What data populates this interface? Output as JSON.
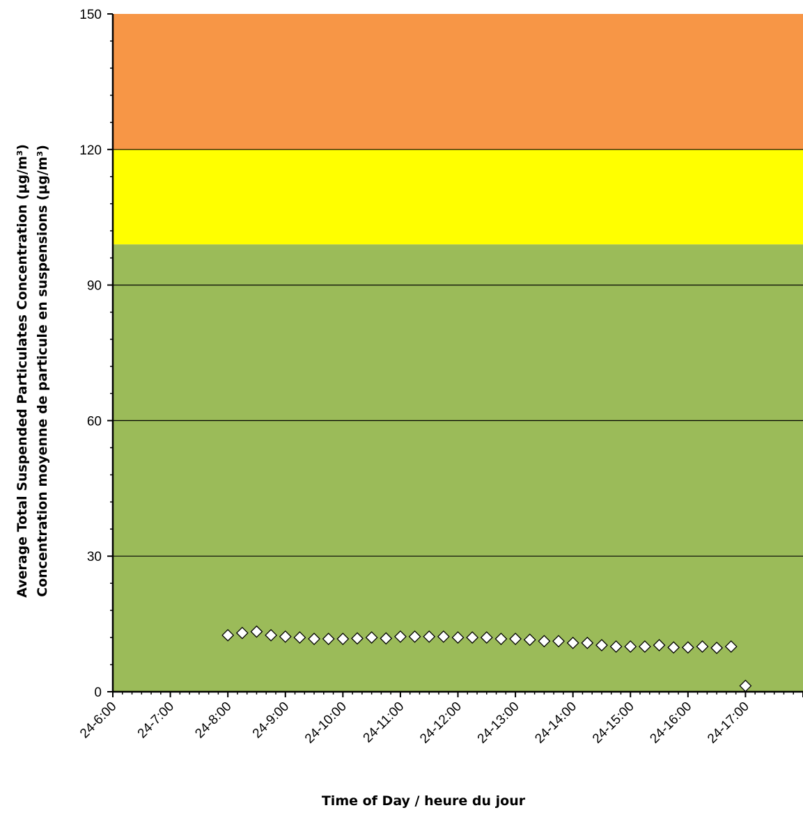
{
  "chart_data": {
    "type": "scatter",
    "title": "",
    "xlabel": "Time of Day / heure du jour",
    "ylabel": [
      "Average Total Suspended Particulates Concentration (µg/m³)",
      "Concentration moyenne de particule en suspensions (µg/m³)"
    ],
    "ylim": [
      0,
      150
    ],
    "yticks": [
      0,
      30,
      60,
      90,
      120,
      150
    ],
    "xlim": [
      "24-6:00",
      "24-18:00"
    ],
    "xtick_labels": [
      "24-6:00",
      "24-7:00",
      "24-8:00",
      "24-9:00",
      "24-10:00",
      "24-11:00",
      "24-12:00",
      "24-13:00",
      "24-14:00",
      "24-15:00",
      "24-16:00",
      "24-17:00"
    ],
    "grid": "horizontal major",
    "legend": "none",
    "bands": [
      {
        "from": 0,
        "to": 99,
        "color": "#9bbb59"
      },
      {
        "from": 99,
        "to": 120,
        "color": "#ffff00"
      },
      {
        "from": 120,
        "to": 150,
        "color": "#f79646"
      }
    ],
    "marker": {
      "shape": "diamond",
      "fill": "#ffffff",
      "stroke": "#000000"
    },
    "points": [
      {
        "x": "24-8:00",
        "y": 12.5
      },
      {
        "x": "24-8:15",
        "y": 13.0
      },
      {
        "x": "24-8:30",
        "y": 13.3
      },
      {
        "x": "24-8:45",
        "y": 12.5
      },
      {
        "x": "24-9:00",
        "y": 12.2
      },
      {
        "x": "24-9:15",
        "y": 12.0
      },
      {
        "x": "24-9:30",
        "y": 11.7
      },
      {
        "x": "24-9:45",
        "y": 11.7
      },
      {
        "x": "24-10:00",
        "y": 11.7
      },
      {
        "x": "24-10:15",
        "y": 11.8
      },
      {
        "x": "24-10:30",
        "y": 12.0
      },
      {
        "x": "24-10:45",
        "y": 11.8
      },
      {
        "x": "24-11:00",
        "y": 12.2
      },
      {
        "x": "24-11:15",
        "y": 12.2
      },
      {
        "x": "24-11:30",
        "y": 12.2
      },
      {
        "x": "24-11:45",
        "y": 12.2
      },
      {
        "x": "24-12:00",
        "y": 12.0
      },
      {
        "x": "24-12:15",
        "y": 12.0
      },
      {
        "x": "24-12:30",
        "y": 12.0
      },
      {
        "x": "24-12:45",
        "y": 11.7
      },
      {
        "x": "24-13:00",
        "y": 11.7
      },
      {
        "x": "24-13:15",
        "y": 11.5
      },
      {
        "x": "24-13:30",
        "y": 11.2
      },
      {
        "x": "24-13:45",
        "y": 11.2
      },
      {
        "x": "24-14:00",
        "y": 10.8
      },
      {
        "x": "24-14:15",
        "y": 10.8
      },
      {
        "x": "24-14:30",
        "y": 10.3
      },
      {
        "x": "24-14:45",
        "y": 10.0
      },
      {
        "x": "24-15:00",
        "y": 10.0
      },
      {
        "x": "24-15:15",
        "y": 10.0
      },
      {
        "x": "24-15:30",
        "y": 10.3
      },
      {
        "x": "24-15:45",
        "y": 9.8
      },
      {
        "x": "24-16:00",
        "y": 9.8
      },
      {
        "x": "24-16:15",
        "y": 10.0
      },
      {
        "x": "24-16:30",
        "y": 9.7
      },
      {
        "x": "24-16:45",
        "y": 10.0
      },
      {
        "x": "24-17:00",
        "y": 1.3
      }
    ]
  }
}
